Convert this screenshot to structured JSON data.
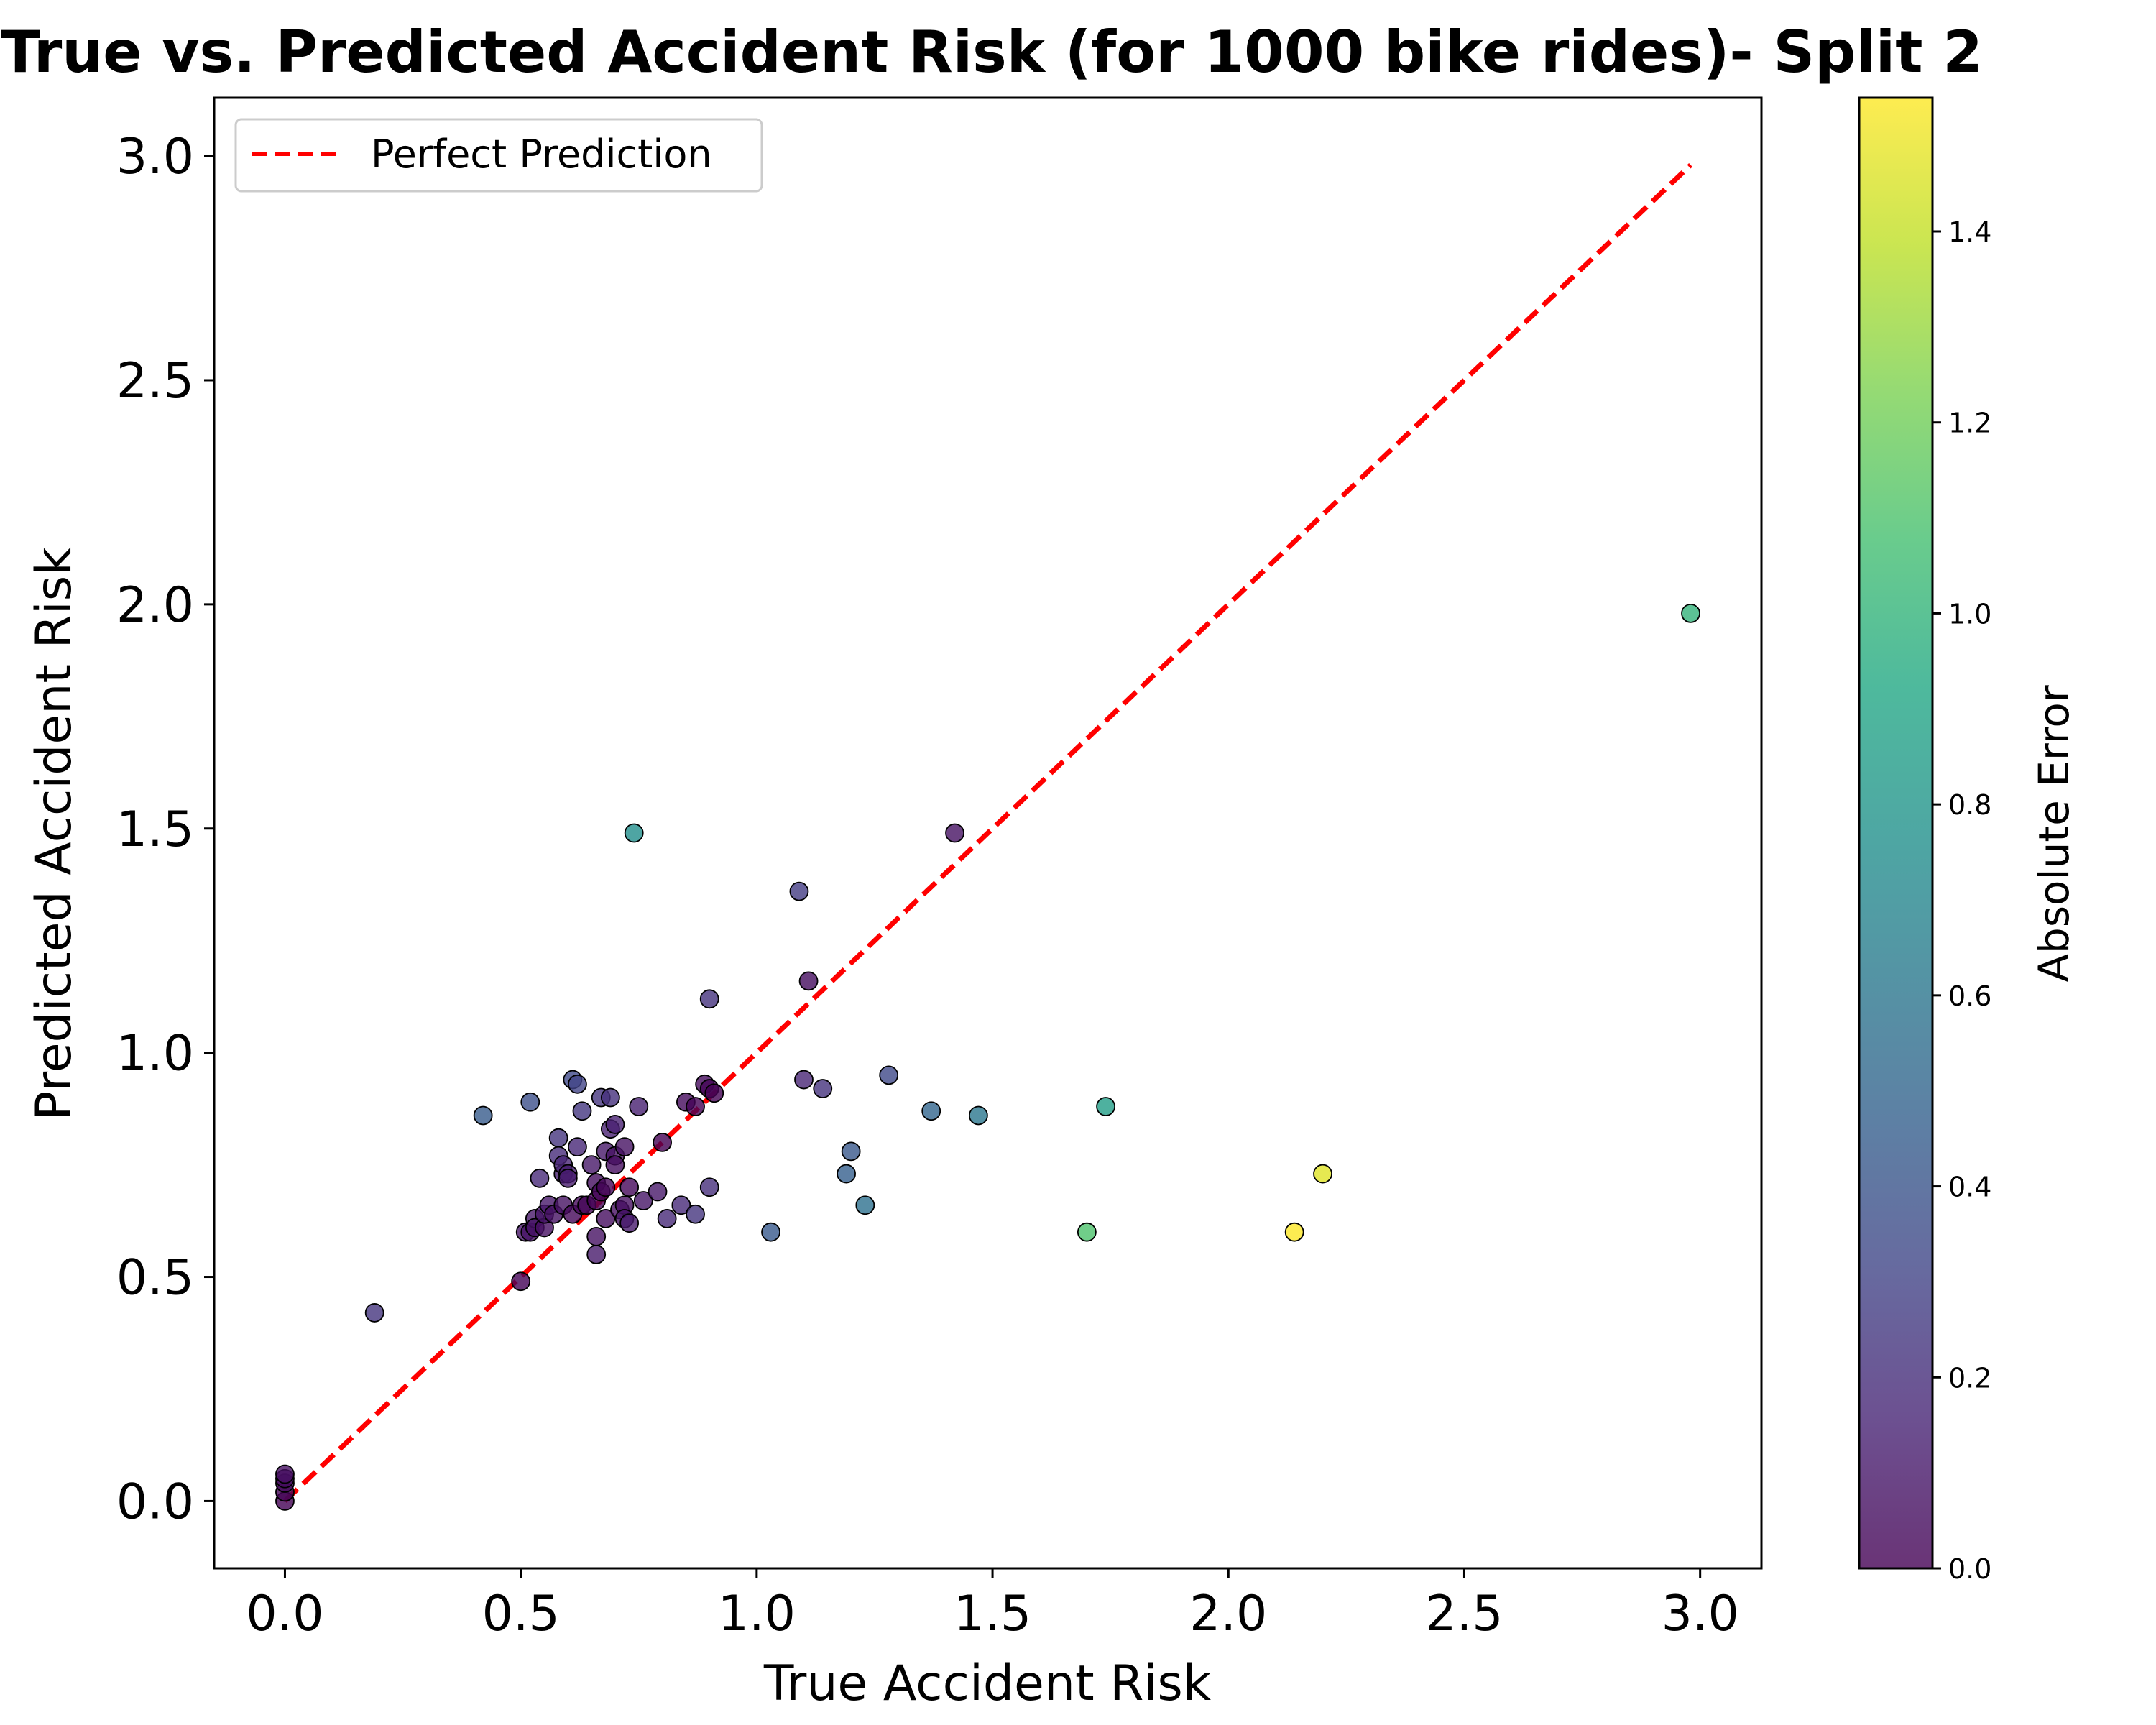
{
  "chart_data": {
    "type": "scatter",
    "title": "True vs. Predicted Accident Risk (for 1000 bike rides)- Split 2",
    "xlabel": "True Accident Risk",
    "ylabel": "Predicted Accident Risk",
    "xlim": [
      -0.15,
      3.13
    ],
    "ylim": [
      -0.15,
      3.13
    ],
    "xticks": [
      "0.0",
      "0.5",
      "1.0",
      "1.5",
      "2.0",
      "2.5",
      "3.0"
    ],
    "yticks": [
      "0.0",
      "0.5",
      "1.0",
      "1.5",
      "2.0",
      "2.5",
      "3.0"
    ],
    "reference_line": {
      "label": "Perfect Prediction",
      "from": [
        0,
        0
      ],
      "to": [
        2.98,
        2.98
      ],
      "color": "#ff0000",
      "style": "dashed"
    },
    "legend": {
      "placement": "top-left",
      "entries": [
        "Perfect Prediction"
      ]
    },
    "colorbar": {
      "label": "Absolute Error",
      "range": [
        0,
        1.54
      ],
      "ticks": [
        "0.0",
        "0.2",
        "0.4",
        "0.6",
        "0.8",
        "1.0",
        "1.2",
        "1.4"
      ],
      "colormap": "viridis"
    },
    "points": [
      [
        0.0,
        0.0
      ],
      [
        0.0,
        0.02
      ],
      [
        0.0,
        0.04
      ],
      [
        0.0,
        0.05
      ],
      [
        0.0,
        0.06
      ],
      [
        0.19,
        0.42
      ],
      [
        0.42,
        0.86
      ],
      [
        0.5,
        0.49
      ],
      [
        0.51,
        0.6
      ],
      [
        0.52,
        0.89
      ],
      [
        0.52,
        0.6
      ],
      [
        0.53,
        0.63
      ],
      [
        0.53,
        0.61
      ],
      [
        0.54,
        0.72
      ],
      [
        0.55,
        0.61
      ],
      [
        0.55,
        0.64
      ],
      [
        0.56,
        0.66
      ],
      [
        0.57,
        0.64
      ],
      [
        0.58,
        0.81
      ],
      [
        0.58,
        0.77
      ],
      [
        0.59,
        0.73
      ],
      [
        0.59,
        0.75
      ],
      [
        0.59,
        0.66
      ],
      [
        0.6,
        0.73
      ],
      [
        0.6,
        0.72
      ],
      [
        0.61,
        0.94
      ],
      [
        0.61,
        0.64
      ],
      [
        0.62,
        0.93
      ],
      [
        0.62,
        0.79
      ],
      [
        0.63,
        0.87
      ],
      [
        0.63,
        0.66
      ],
      [
        0.64,
        0.66
      ],
      [
        0.65,
        0.75
      ],
      [
        0.66,
        0.71
      ],
      [
        0.66,
        0.67
      ],
      [
        0.66,
        0.59
      ],
      [
        0.66,
        0.55
      ],
      [
        0.67,
        0.9
      ],
      [
        0.67,
        0.69
      ],
      [
        0.68,
        0.78
      ],
      [
        0.68,
        0.7
      ],
      [
        0.68,
        0.63
      ],
      [
        0.69,
        0.9
      ],
      [
        0.69,
        0.83
      ],
      [
        0.7,
        0.84
      ],
      [
        0.7,
        0.77
      ],
      [
        0.7,
        0.75
      ],
      [
        0.71,
        0.65
      ],
      [
        0.72,
        0.79
      ],
      [
        0.72,
        0.66
      ],
      [
        0.72,
        0.63
      ],
      [
        0.73,
        0.7
      ],
      [
        0.73,
        0.62
      ],
      [
        0.74,
        1.49
      ],
      [
        0.75,
        0.88
      ],
      [
        0.76,
        0.67
      ],
      [
        0.79,
        0.69
      ],
      [
        0.8,
        0.8
      ],
      [
        0.81,
        0.63
      ],
      [
        0.84,
        0.66
      ],
      [
        0.85,
        0.89
      ],
      [
        0.87,
        0.88
      ],
      [
        0.87,
        0.64
      ],
      [
        0.89,
        0.93
      ],
      [
        0.9,
        1.12
      ],
      [
        0.9,
        0.92
      ],
      [
        0.9,
        0.7
      ],
      [
        0.91,
        0.91
      ],
      [
        1.03,
        0.6
      ],
      [
        1.09,
        1.36
      ],
      [
        1.1,
        0.94
      ],
      [
        1.11,
        1.16
      ],
      [
        1.14,
        0.92
      ],
      [
        1.19,
        0.73
      ],
      [
        1.2,
        0.78
      ],
      [
        1.23,
        0.66
      ],
      [
        1.28,
        0.95
      ],
      [
        1.37,
        0.87
      ],
      [
        1.42,
        1.49
      ],
      [
        1.47,
        0.86
      ],
      [
        1.7,
        0.6
      ],
      [
        1.74,
        0.88
      ],
      [
        2.14,
        0.6
      ],
      [
        2.2,
        0.73
      ],
      [
        2.98,
        1.98
      ]
    ]
  }
}
